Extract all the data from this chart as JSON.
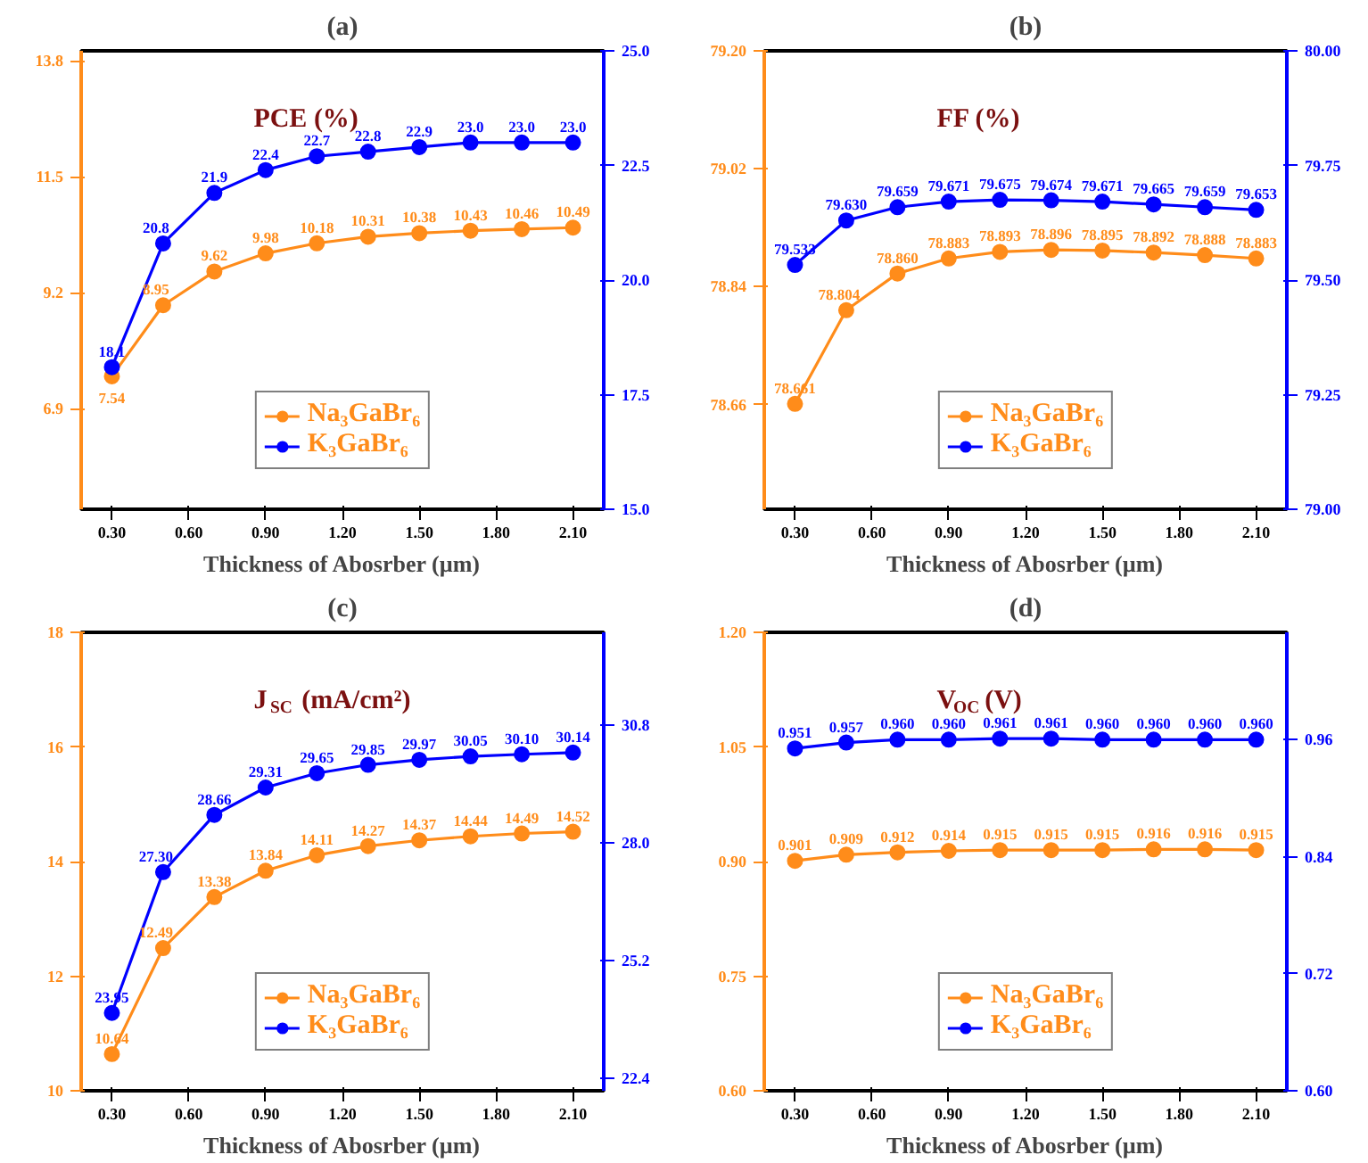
{
  "chart_data": [
    {
      "type": "line",
      "title": "(a)",
      "xlabel": "Thickness of Abosrber (µm)",
      "annotations": [
        "PCE (%)"
      ],
      "x": [
        0.3,
        0.5,
        0.7,
        0.9,
        1.1,
        1.3,
        1.5,
        1.7,
        1.9,
        2.1
      ],
      "xlim": [
        0.18,
        2.22
      ],
      "xticks": [
        {
          "value": 0.3,
          "label": "0.30"
        },
        {
          "value": 0.6,
          "label": "0.60"
        },
        {
          "value": 0.9,
          "label": "0.90"
        },
        {
          "value": 1.2,
          "label": "1.20"
        },
        {
          "value": 1.5,
          "label": "1.50"
        },
        {
          "value": 1.8,
          "label": "1.80"
        },
        {
          "value": 2.1,
          "label": "2.10"
        }
      ],
      "ylim": [
        4.9,
        14.0
      ],
      "yticks": [
        6.9,
        9.2,
        11.5,
        13.8
      ],
      "y2lim": [
        15,
        25
      ],
      "y2ticks": [
        {
          "value": 15,
          "label": "15.0"
        },
        17.5,
        {
          "value": 20,
          "label": "20.0"
        },
        22.5,
        {
          "value": 25,
          "label": "25.0"
        }
      ],
      "series": [
        {
          "name": "Na₃GaBr₆",
          "color": "#ff8c1a",
          "values": [
            7.54,
            8.95,
            9.62,
            9.98,
            10.18,
            10.31,
            10.38,
            10.43,
            10.46,
            10.49
          ],
          "value_labels": [
            "7.54",
            "8.95",
            "9.62",
            "9.98",
            "10.18",
            "10.31",
            "10.38",
            "10.43",
            "10.46",
            "10.49"
          ]
        },
        {
          "name": "K₃GaBr₆",
          "color": "#0000ff",
          "axis": "y2",
          "values": [
            18.1,
            20.8,
            21.9,
            22.4,
            22.7,
            22.8,
            22.9,
            23.0,
            23.0,
            23.0
          ],
          "value_labels": [
            "18.1",
            "20.8",
            "21.9",
            "22.4",
            "22.7",
            "22.8",
            "22.9",
            "23.0",
            "23.0",
            "23.0"
          ]
        }
      ],
      "marker": "circle",
      "legend": "bottom",
      "grid": false
    },
    {
      "type": "line",
      "title": "(b)",
      "xlabel": "Thickness of Abosrber (µm)",
      "annotations": [
        "FF (%)"
      ],
      "x": [
        0.3,
        0.5,
        0.7,
        0.9,
        1.1,
        1.3,
        1.5,
        1.7,
        1.9,
        2.1
      ],
      "xlim": [
        0.18,
        2.22
      ],
      "xticks": [
        {
          "value": 0.3,
          "label": "0.30"
        },
        {
          "value": 0.6,
          "label": "0.60"
        },
        {
          "value": 0.9,
          "label": "0.90"
        },
        {
          "value": 1.2,
          "label": "1.20"
        },
        {
          "value": 1.5,
          "label": "1.50"
        },
        {
          "value": 1.8,
          "label": "1.80"
        },
        {
          "value": 2.1,
          "label": "2.10"
        }
      ],
      "ylim": [
        78.5,
        79.2
      ],
      "yticks": [
        78.66,
        78.84,
        79.02,
        {
          "value": 79.2,
          "label": "79.20"
        }
      ],
      "y2lim": [
        79.0,
        80.0
      ],
      "y2ticks": [
        {
          "value": 79.0,
          "label": "79.00"
        },
        79.25,
        {
          "value": 79.5,
          "label": "79.50"
        },
        79.75,
        {
          "value": 80.0,
          "label": "80.00"
        }
      ],
      "series": [
        {
          "name": "Na₃GaBr₆",
          "color": "#ff8c1a",
          "values": [
            78.661,
            78.804,
            78.86,
            78.883,
            78.893,
            78.896,
            78.895,
            78.892,
            78.888,
            78.883
          ],
          "value_labels": [
            "78.661",
            "78.804",
            "78.860",
            "78.883",
            "78.893",
            "78.896",
            "78.895",
            "78.892",
            "78.888",
            "78.883"
          ]
        },
        {
          "name": "K₃GaBr₆",
          "color": "#0000ff",
          "axis": "y2",
          "values": [
            79.533,
            79.63,
            79.659,
            79.671,
            79.675,
            79.674,
            79.671,
            79.665,
            79.659,
            79.653
          ],
          "value_labels": [
            "79.533",
            "79.630",
            "79.659",
            "79.671",
            "79.675",
            "79.674",
            "79.671",
            "79.665",
            "79.659",
            "79.653"
          ]
        }
      ],
      "marker": "circle",
      "legend": "bottom",
      "grid": false
    },
    {
      "type": "line",
      "title": "(c)",
      "xlabel": "Thickness of Abosrber (µm)",
      "annotations": [
        "J$_{SC}$ (mA/cm²)"
      ],
      "x": [
        0.3,
        0.5,
        0.7,
        0.9,
        1.1,
        1.3,
        1.5,
        1.7,
        1.9,
        2.1
      ],
      "xlim": [
        0.18,
        2.22
      ],
      "xticks": [
        {
          "value": 0.3,
          "label": "0.30"
        },
        {
          "value": 0.6,
          "label": "0.60"
        },
        {
          "value": 0.9,
          "label": "0.90"
        },
        {
          "value": 1.2,
          "label": "1.20"
        },
        {
          "value": 1.5,
          "label": "1.50"
        },
        {
          "value": 1.8,
          "label": "1.80"
        },
        {
          "value": 2.1,
          "label": "2.10"
        }
      ],
      "ylim": [
        10,
        18
      ],
      "yticks": [
        10,
        12,
        14,
        16,
        18
      ],
      "y2lim": [
        22.1,
        33.0
      ],
      "y2ticks": [
        22.4,
        25.2,
        {
          "value": 28.0,
          "label": "28.0"
        },
        30.8
      ],
      "series": [
        {
          "name": "Na₃GaBr₆",
          "color": "#ff8c1a",
          "values": [
            10.64,
            12.49,
            13.38,
            13.84,
            14.11,
            14.27,
            14.37,
            14.44,
            14.49,
            14.52
          ],
          "value_labels": [
            "10.64",
            "12.49",
            "13.38",
            "13.84",
            "14.11",
            "14.27",
            "14.37",
            "14.44",
            "14.49",
            "14.52"
          ]
        },
        {
          "name": "K₃GaBr₆",
          "color": "#0000ff",
          "axis": "y2",
          "values": [
            23.95,
            27.3,
            28.66,
            29.31,
            29.65,
            29.85,
            29.97,
            30.05,
            30.1,
            30.14
          ],
          "value_labels": [
            "23.95",
            "27.30",
            "28.66",
            "29.31",
            "29.65",
            "29.85",
            "29.97",
            "30.05",
            "30.10",
            "30.14"
          ]
        }
      ],
      "marker": "circle",
      "legend": "bottom",
      "grid": false
    },
    {
      "type": "line",
      "title": "(d)",
      "xlabel": "Thickness of Abosrber (µm)",
      "annotations": [
        "V$_{OC}$ (V)"
      ],
      "x": [
        0.3,
        0.5,
        0.7,
        0.9,
        1.1,
        1.3,
        1.5,
        1.7,
        1.9,
        2.1
      ],
      "xlim": [
        0.18,
        2.22
      ],
      "xticks": [
        {
          "value": 0.3,
          "label": "0.30"
        },
        {
          "value": 0.6,
          "label": "0.60"
        },
        {
          "value": 0.9,
          "label": "0.90"
        },
        {
          "value": 1.2,
          "label": "1.20"
        },
        {
          "value": 1.5,
          "label": "1.50"
        },
        {
          "value": 1.8,
          "label": "1.80"
        },
        {
          "value": 2.1,
          "label": "2.10"
        }
      ],
      "ylim": [
        0.6,
        1.2
      ],
      "yticks": [
        {
          "value": 0.6,
          "label": "0.60"
        },
        0.75,
        {
          "value": 0.9,
          "label": "0.90"
        },
        1.05,
        {
          "value": 1.2,
          "label": "1.20"
        }
      ],
      "y2lim": [
        0.6,
        1.07
      ],
      "y2ticks": [
        {
          "value": 0.6,
          "label": "0.60"
        },
        0.72,
        0.84,
        0.96
      ],
      "series": [
        {
          "name": "Na₃GaBr₆",
          "color": "#ff8c1a",
          "values": [
            0.901,
            0.909,
            0.912,
            0.914,
            0.915,
            0.915,
            0.915,
            0.916,
            0.916,
            0.915
          ],
          "value_labels": [
            "0.901",
            "0.909",
            "0.912",
            "0.914",
            "0.915",
            "0.915",
            "0.915",
            "0.916",
            "0.916",
            "0.915"
          ]
        },
        {
          "name": "K₃GaBr₆",
          "color": "#0000ff",
          "axis": "y2",
          "values": [
            0.951,
            0.957,
            0.96,
            0.96,
            0.961,
            0.961,
            0.96,
            0.96,
            0.96,
            0.96
          ],
          "value_labels": [
            "0.951",
            "0.957",
            "0.960",
            "0.960",
            "0.961",
            "0.961",
            "0.960",
            "0.960",
            "0.960",
            "0.960"
          ]
        }
      ],
      "marker": "circle",
      "legend": "bottom",
      "grid": false
    }
  ]
}
